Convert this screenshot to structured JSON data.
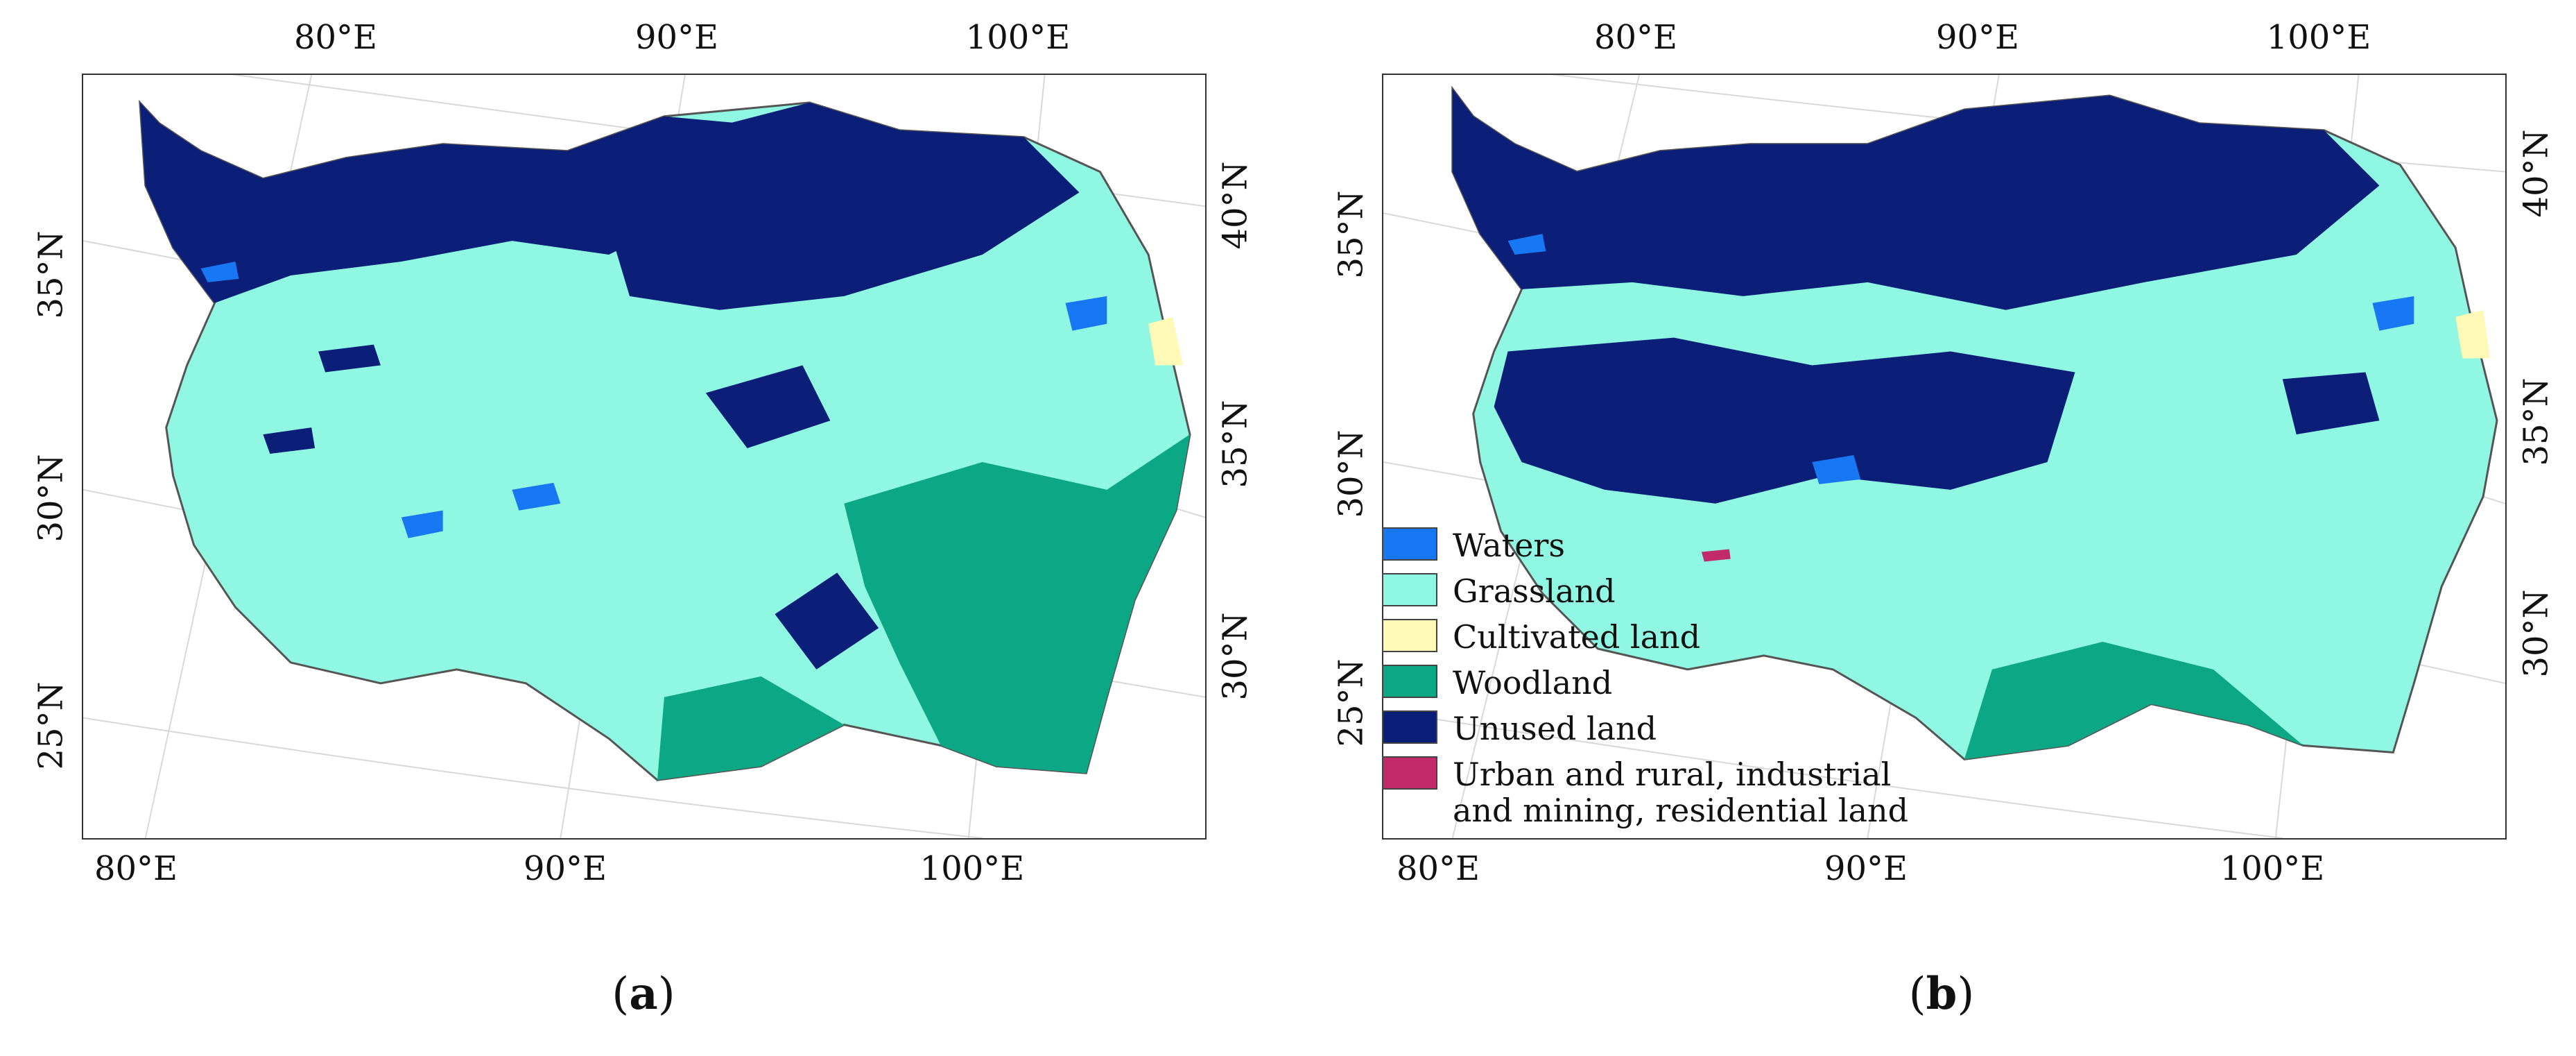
{
  "legend": {
    "items": [
      {
        "label": "Waters",
        "color": "#1877f2"
      },
      {
        "label": "Grassland",
        "color": "#8ff7e2"
      },
      {
        "label": "Cultivated land",
        "color": "#fff9b8"
      },
      {
        "label": "Woodland",
        "color": "#0ca886"
      },
      {
        "label": "Unused land",
        "color": "#0b1f78"
      },
      {
        "label": "Urban and rural, industrial\nand mining, residential land",
        "color": "#c22a6a"
      }
    ]
  },
  "panel_a": {
    "caption_letter": "a",
    "top_ticks": [
      "80°E",
      "90°E",
      "100°E"
    ],
    "bottom_ticks": [
      "80°E",
      "90°E",
      "100°E"
    ],
    "left_ticks": [
      "35°N",
      "30°N",
      "25°N"
    ],
    "right_ticks": [
      "40°N",
      "35°N",
      "30°N"
    ]
  },
  "panel_b": {
    "caption_letter": "b",
    "top_ticks": [
      "80°E",
      "90°E",
      "100°E"
    ],
    "bottom_ticks": [
      "80°E",
      "90°E",
      "100°E"
    ],
    "left_ticks": [
      "35°N",
      "30°N",
      "25°N"
    ],
    "right_ticks": [
      "40°N",
      "35°N",
      "30°N"
    ]
  }
}
